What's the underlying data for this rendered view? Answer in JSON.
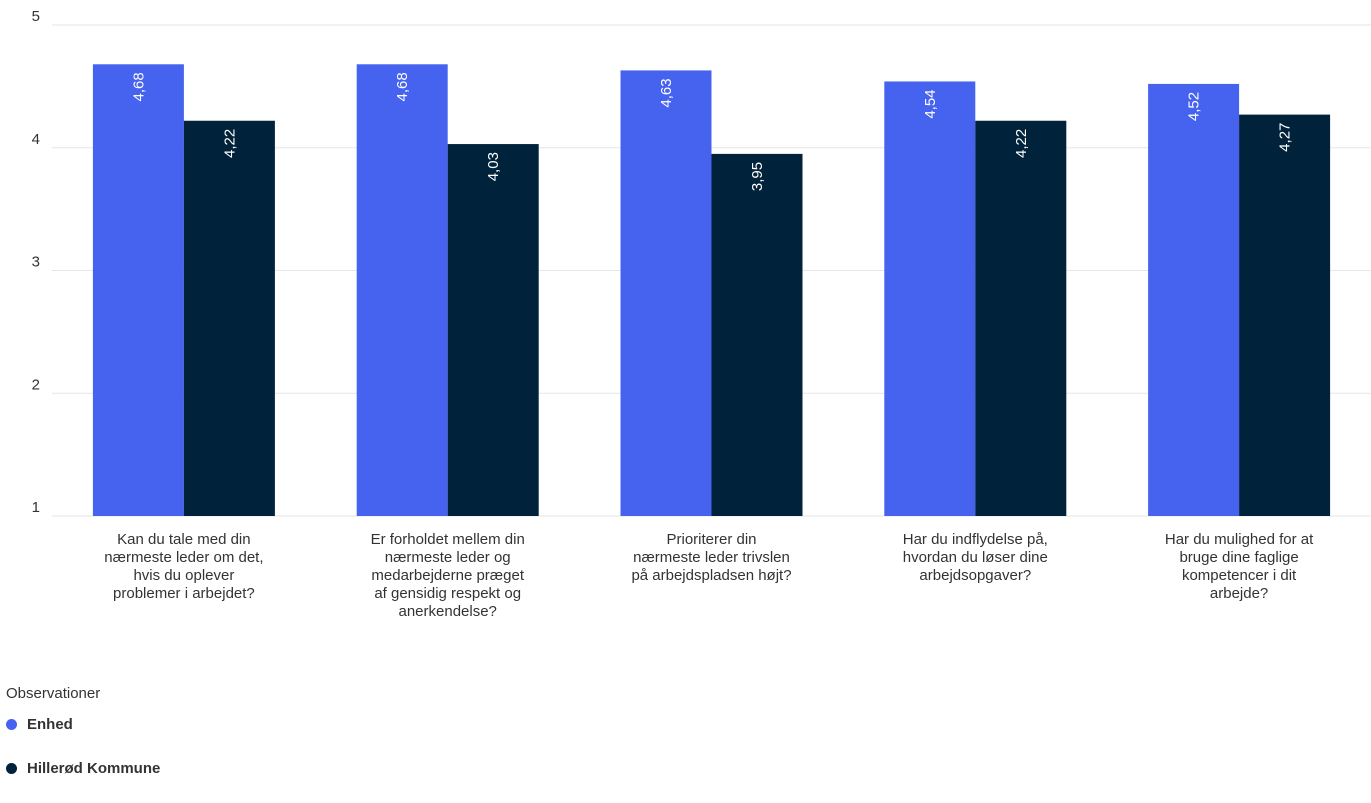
{
  "chart_data": {
    "type": "bar",
    "categories": [
      "Kan du tale med din nærmeste leder om det, hvis du oplever problemer i arbejdet?",
      "Er forholdet mellem din nærmeste leder og medarbejderne præget af gensidig respekt og anerkendelse?",
      "Prioriterer din nærmeste leder trivslen på arbejdspladsen højt?",
      "Har du indflydelse på, hvordan du løser dine arbejdsopgaver?",
      "Har du mulighed for at bruge dine faglige kompetencer i dit arbejde?"
    ],
    "category_lines": [
      [
        "Kan du tale med din",
        "nærmeste leder om det,",
        "hvis du oplever",
        "problemer i arbejdet?"
      ],
      [
        "Er forholdet mellem din",
        "nærmeste leder og",
        "medarbejderne præget",
        "af gensidig respekt og",
        "anerkendelse?"
      ],
      [
        "Prioriterer din",
        "nærmeste leder trivslen",
        "på arbejdspladsen højt?"
      ],
      [
        "Har du indflydelse på,",
        "hvordan du løser dine",
        "arbejdsopgaver?"
      ],
      [
        "Har du mulighed for at",
        "bruge dine faglige",
        "kompetencer i dit",
        "arbejde?"
      ]
    ],
    "series": [
      {
        "name": "Enhed",
        "color": "#4663f0",
        "values": [
          4.68,
          4.68,
          4.63,
          4.54,
          4.52
        ],
        "labels": [
          "4,68",
          "4,68",
          "4,63",
          "4,54",
          "4,52"
        ]
      },
      {
        "name": "Hillerød Kommune",
        "color": "#00223a",
        "values": [
          4.22,
          4.03,
          3.95,
          4.22,
          4.27
        ],
        "labels": [
          "4,22",
          "4,03",
          "3,95",
          "4,22",
          "4,27"
        ]
      }
    ],
    "ylim": [
      1,
      5
    ],
    "yticks": [
      1,
      2,
      3,
      4,
      5
    ],
    "grid": true,
    "legend": {
      "title": "Observationer",
      "position": "bottom-left"
    },
    "title": "",
    "xlabel": "",
    "ylabel": ""
  }
}
